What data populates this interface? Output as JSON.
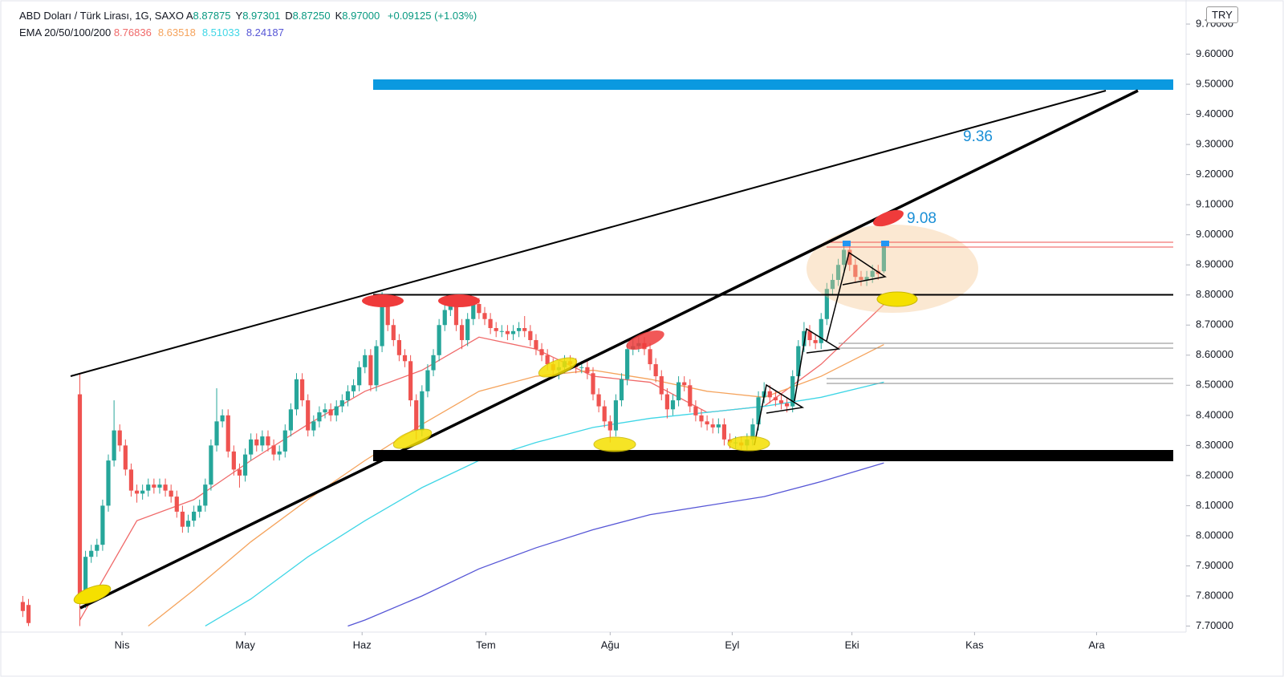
{
  "chart_data": {
    "type": "candlestick",
    "title": "ABD Doları / Türk Lirası, 1G, SAXO",
    "ohlc_header": [
      {
        "key": "A",
        "value": "8.87875"
      },
      {
        "key": "Y",
        "value": "8.97301"
      },
      {
        "key": "D",
        "value": "8.87250"
      },
      {
        "key": "K",
        "value": "8.97000"
      }
    ],
    "change": "+0.09125 (+1.03%)",
    "indicator_title": "EMA 20/50/100/200",
    "currency": "TRY",
    "up_color": "#26a69a",
    "down_color": "#ef5350",
    "xlim": [
      -4,
      204
    ],
    "ylim": [
      7.68,
      9.78
    ],
    "xticks": [
      {
        "value": 17.4,
        "label": "Nis"
      },
      {
        "value": 39,
        "label": "May"
      },
      {
        "value": 59.5,
        "label": "Haz"
      },
      {
        "value": 81.2,
        "label": "Tem"
      },
      {
        "value": 103,
        "label": "Ağu"
      },
      {
        "value": 124.4,
        "label": "Eyl"
      },
      {
        "value": 145.4,
        "label": "Eki"
      },
      {
        "value": 166.9,
        "label": "Kas"
      },
      {
        "value": 188.3,
        "label": "Ara"
      }
    ],
    "yticks": [
      {
        "value": 7.7,
        "label": "7.70000"
      },
      {
        "value": 7.8,
        "label": "7.80000"
      },
      {
        "value": 7.9,
        "label": "7.90000"
      },
      {
        "value": 8.0,
        "label": "8.00000"
      },
      {
        "value": 8.1,
        "label": "8.10000"
      },
      {
        "value": 8.2,
        "label": "8.20000"
      },
      {
        "value": 8.3,
        "label": "8.30000"
      },
      {
        "value": 8.4,
        "label": "8.40000"
      },
      {
        "value": 8.5,
        "label": "8.50000"
      },
      {
        "value": 8.6,
        "label": "8.60000"
      },
      {
        "value": 8.7,
        "label": "8.70000"
      },
      {
        "value": 8.8,
        "label": "8.80000"
      },
      {
        "value": 8.9,
        "label": "8.90000"
      },
      {
        "value": 9.0,
        "label": "9.00000"
      },
      {
        "value": 9.1,
        "label": "9.10000"
      },
      {
        "value": 9.2,
        "label": "9.20000"
      },
      {
        "value": 9.3,
        "label": "9.30000"
      },
      {
        "value": 9.4,
        "label": "9.40000"
      },
      {
        "value": 9.5,
        "label": "9.50000"
      },
      {
        "value": 9.6,
        "label": "9.60000"
      },
      {
        "value": 9.7,
        "label": "9.70000"
      }
    ],
    "x": [
      0,
      1,
      10,
      11,
      12,
      13,
      14,
      15,
      16,
      17,
      18,
      19,
      20,
      21,
      22,
      23,
      24,
      25,
      26,
      27,
      28,
      29,
      30,
      31,
      32,
      33,
      34,
      35,
      36,
      37,
      38,
      39,
      40,
      41,
      42,
      43,
      44,
      45,
      46,
      47,
      48,
      49,
      50,
      51,
      52,
      53,
      54,
      55,
      56,
      57,
      58,
      59,
      60,
      61,
      62,
      63,
      64,
      65,
      66,
      67,
      68,
      69,
      70,
      71,
      72,
      73,
      74,
      75,
      76,
      77,
      78,
      79,
      80,
      81,
      82,
      83,
      84,
      85,
      86,
      87,
      88,
      89,
      90,
      91,
      92,
      93,
      94,
      95,
      96,
      97,
      98,
      99,
      100,
      101,
      102,
      103,
      104,
      105,
      106,
      107,
      108,
      109,
      110,
      111,
      112,
      113,
      114,
      115,
      116,
      117,
      118,
      119,
      120,
      121,
      122,
      123,
      124,
      125,
      126,
      127,
      128,
      129,
      130,
      131,
      132,
      133,
      134,
      135,
      136,
      137,
      138,
      139,
      140,
      141,
      142,
      143,
      144,
      145,
      146,
      147,
      148,
      149,
      150,
      151
    ],
    "open": [
      7.78,
      7.77,
      8.47,
      7.78,
      7.93,
      7.95,
      7.97,
      8.1,
      8.25,
      8.35,
      8.3,
      8.22,
      8.15,
      8.14,
      8.15,
      8.17,
      8.16,
      8.17,
      8.15,
      8.13,
      8.08,
      8.03,
      8.05,
      8.08,
      8.1,
      8.17,
      8.3,
      8.38,
      8.4,
      8.28,
      8.22,
      8.2,
      8.27,
      8.32,
      8.3,
      8.33,
      8.3,
      8.27,
      8.28,
      8.35,
      8.42,
      8.52,
      8.45,
      8.35,
      8.38,
      8.41,
      8.42,
      8.4,
      8.43,
      8.45,
      8.48,
      8.5,
      8.56,
      8.6,
      8.5,
      8.63,
      8.78,
      8.7,
      8.65,
      8.6,
      8.58,
      8.45,
      8.35,
      8.48,
      8.55,
      8.6,
      8.7,
      8.75,
      8.78,
      8.7,
      8.65,
      8.72,
      8.77,
      8.74,
      8.72,
      8.69,
      8.68,
      8.68,
      8.67,
      8.68,
      8.69,
      8.68,
      8.65,
      8.62,
      8.6,
      8.57,
      8.55,
      8.56,
      8.58,
      8.57,
      8.56,
      8.56,
      8.54,
      8.47,
      8.43,
      8.38,
      8.35,
      8.45,
      8.52,
      8.62,
      8.63,
      8.64,
      8.62,
      8.57,
      8.53,
      8.47,
      8.42,
      8.45,
      8.51,
      8.5,
      8.43,
      8.4,
      8.38,
      8.37,
      8.36,
      8.37,
      8.32,
      8.31,
      8.31,
      8.3,
      8.32,
      8.37,
      8.46,
      8.48,
      8.46,
      8.45,
      8.44,
      8.43,
      8.53,
      8.63,
      8.68,
      8.65,
      8.64,
      8.72,
      8.82,
      8.85,
      8.9,
      8.95,
      8.9,
      8.86,
      8.85,
      8.86,
      8.88,
      8.87875
    ],
    "high": [
      7.8,
      7.79,
      8.54,
      7.95,
      7.97,
      7.99,
      8.12,
      8.27,
      8.45,
      8.37,
      8.32,
      8.24,
      8.17,
      8.17,
      8.19,
      8.19,
      8.19,
      8.19,
      8.17,
      8.15,
      8.1,
      8.07,
      8.1,
      8.12,
      8.19,
      8.32,
      8.49,
      8.42,
      8.42,
      8.3,
      8.24,
      8.29,
      8.34,
      8.34,
      8.35,
      8.35,
      8.32,
      8.3,
      8.37,
      8.44,
      8.54,
      8.54,
      8.47,
      8.4,
      8.43,
      8.44,
      8.44,
      8.45,
      8.47,
      8.5,
      8.52,
      8.58,
      8.62,
      8.62,
      8.65,
      8.81,
      8.8,
      8.72,
      8.67,
      8.62,
      8.6,
      8.47,
      8.5,
      8.57,
      8.62,
      8.72,
      8.77,
      8.8,
      8.8,
      8.72,
      8.74,
      8.79,
      8.79,
      8.76,
      8.74,
      8.71,
      8.7,
      8.7,
      8.7,
      8.71,
      8.73,
      8.7,
      8.67,
      8.64,
      8.62,
      8.59,
      8.58,
      8.6,
      8.6,
      8.59,
      8.58,
      8.58,
      8.56,
      8.49,
      8.45,
      8.4,
      8.47,
      8.54,
      8.64,
      8.66,
      8.66,
      8.66,
      8.64,
      8.59,
      8.55,
      8.49,
      8.47,
      8.53,
      8.53,
      8.52,
      8.45,
      8.42,
      8.4,
      8.39,
      8.39,
      8.39,
      8.34,
      8.33,
      8.33,
      8.34,
      8.39,
      8.48,
      8.51,
      8.5,
      8.48,
      8.47,
      8.46,
      8.55,
      8.65,
      8.71,
      8.7,
      8.67,
      8.74,
      8.84,
      8.87,
      8.92,
      8.97,
      8.97,
      8.92,
      8.88,
      8.88,
      8.9,
      8.9,
      8.97301
    ],
    "low": [
      7.73,
      7.7,
      7.7,
      7.76,
      7.91,
      7.93,
      7.95,
      8.08,
      8.23,
      8.28,
      8.2,
      8.13,
      8.11,
      8.12,
      8.13,
      8.14,
      8.14,
      8.13,
      8.11,
      8.06,
      8.01,
      8.01,
      8.03,
      8.06,
      8.08,
      8.15,
      8.28,
      8.36,
      8.26,
      8.2,
      8.16,
      8.18,
      8.25,
      8.28,
      8.28,
      8.28,
      8.25,
      8.25,
      8.26,
      8.33,
      8.4,
      8.43,
      8.33,
      8.33,
      8.36,
      8.39,
      8.38,
      8.38,
      8.41,
      8.43,
      8.46,
      8.48,
      8.54,
      8.48,
      8.48,
      8.61,
      8.68,
      8.63,
      8.58,
      8.56,
      8.43,
      8.32,
      8.33,
      8.46,
      8.53,
      8.58,
      8.68,
      8.73,
      8.68,
      8.62,
      8.63,
      8.7,
      8.72,
      8.7,
      8.67,
      8.66,
      8.66,
      8.65,
      8.65,
      8.66,
      8.66,
      8.63,
      8.6,
      8.58,
      8.55,
      8.53,
      8.52,
      8.54,
      8.55,
      8.54,
      8.54,
      8.52,
      8.45,
      8.41,
      8.36,
      8.31,
      8.33,
      8.43,
      8.5,
      8.6,
      8.61,
      8.6,
      8.55,
      8.51,
      8.45,
      8.39,
      8.4,
      8.43,
      8.48,
      8.41,
      8.38,
      8.36,
      8.35,
      8.34,
      8.34,
      8.3,
      8.29,
      8.29,
      8.28,
      8.28,
      8.3,
      8.35,
      8.44,
      8.44,
      8.43,
      8.42,
      8.41,
      8.41,
      8.51,
      8.61,
      8.63,
      8.62,
      8.62,
      8.7,
      8.8,
      8.83,
      8.88,
      8.88,
      8.84,
      8.83,
      8.83,
      8.84,
      8.85,
      8.8725
    ],
    "close": [
      7.75,
      7.71,
      7.78,
      7.93,
      7.95,
      7.97,
      8.1,
      8.25,
      8.35,
      8.3,
      8.22,
      8.15,
      8.14,
      8.15,
      8.17,
      8.16,
      8.17,
      8.15,
      8.13,
      8.08,
      8.03,
      8.05,
      8.08,
      8.1,
      8.17,
      8.3,
      8.38,
      8.4,
      8.28,
      8.22,
      8.2,
      8.27,
      8.32,
      8.3,
      8.33,
      8.3,
      8.27,
      8.28,
      8.35,
      8.42,
      8.52,
      8.45,
      8.35,
      8.38,
      8.41,
      8.42,
      8.4,
      8.43,
      8.45,
      8.48,
      8.5,
      8.56,
      8.6,
      8.5,
      8.63,
      8.78,
      8.7,
      8.65,
      8.6,
      8.58,
      8.45,
      8.35,
      8.48,
      8.55,
      8.6,
      8.7,
      8.75,
      8.78,
      8.7,
      8.65,
      8.72,
      8.77,
      8.74,
      8.72,
      8.69,
      8.68,
      8.68,
      8.67,
      8.68,
      8.69,
      8.68,
      8.65,
      8.62,
      8.6,
      8.57,
      8.55,
      8.56,
      8.58,
      8.57,
      8.56,
      8.56,
      8.54,
      8.47,
      8.43,
      8.38,
      8.35,
      8.45,
      8.52,
      8.62,
      8.63,
      8.64,
      8.62,
      8.57,
      8.53,
      8.47,
      8.42,
      8.45,
      8.51,
      8.5,
      8.43,
      8.4,
      8.38,
      8.37,
      8.36,
      8.37,
      8.32,
      8.31,
      8.31,
      8.3,
      8.32,
      8.37,
      8.46,
      8.48,
      8.46,
      8.45,
      8.44,
      8.43,
      8.53,
      8.63,
      8.68,
      8.65,
      8.64,
      8.72,
      8.82,
      8.85,
      8.9,
      8.95,
      8.9,
      8.86,
      8.85,
      8.86,
      8.88,
      8.87,
      8.97
    ],
    "series": [
      {
        "color": "#f06a6a",
        "x": [
          10,
          20,
          30,
          40,
          50,
          60,
          70,
          80,
          90,
          100,
          110,
          120,
          130,
          140,
          151
        ],
        "values": [
          7.72,
          8.05,
          8.12,
          8.25,
          8.37,
          8.48,
          8.55,
          8.66,
          8.62,
          8.53,
          8.51,
          8.41,
          8.43,
          8.57,
          8.76836
        ]
      },
      {
        "color": "#f5a35c",
        "x": [
          22,
          30,
          40,
          50,
          60,
          70,
          80,
          90,
          100,
          110,
          120,
          130,
          140,
          151
        ],
        "values": [
          7.7,
          7.82,
          7.98,
          8.12,
          8.25,
          8.37,
          8.48,
          8.53,
          8.55,
          8.52,
          8.48,
          8.46,
          8.53,
          8.63518
        ]
      },
      {
        "color": "#3fd6e6",
        "x": [
          32,
          40,
          50,
          60,
          70,
          80,
          90,
          100,
          110,
          120,
          130,
          140,
          151
        ],
        "values": [
          7.7,
          7.79,
          7.93,
          8.05,
          8.16,
          8.25,
          8.31,
          8.36,
          8.39,
          8.41,
          8.43,
          8.46,
          8.51033
        ]
      },
      {
        "color": "#5656d6",
        "x": [
          57,
          60,
          70,
          80,
          90,
          100,
          110,
          120,
          130,
          140,
          151
        ],
        "values": [
          7.7,
          7.72,
          7.8,
          7.89,
          7.96,
          8.02,
          8.07,
          8.1,
          8.13,
          8.18,
          8.24187
        ]
      }
    ],
    "annotations": [
      {
        "text": "9.36"
      },
      {
        "text": "9.08"
      }
    ]
  }
}
